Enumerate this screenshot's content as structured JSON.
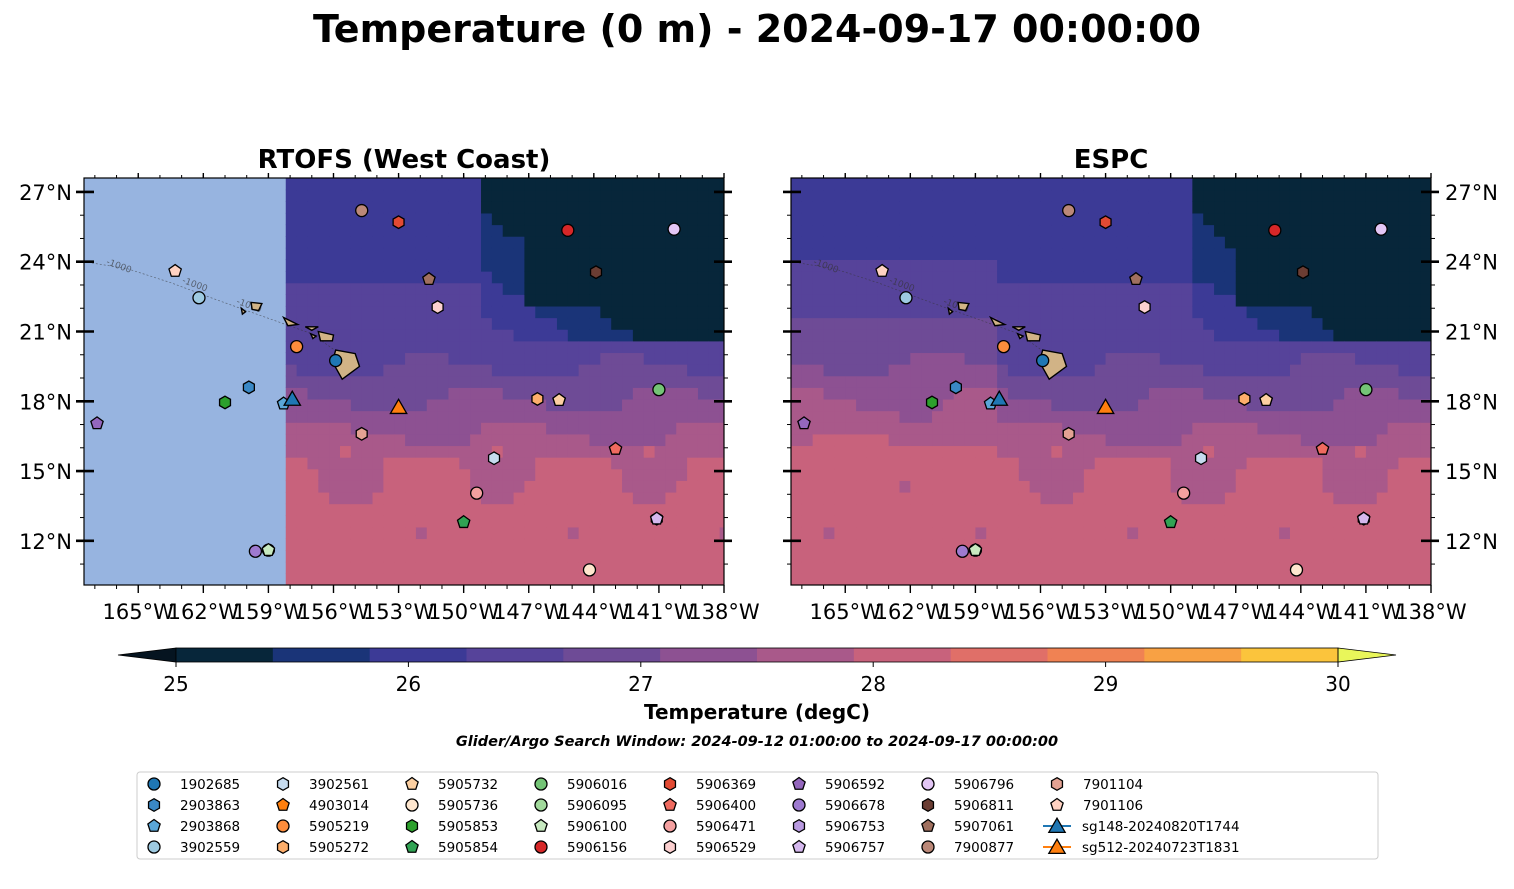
{
  "figure": {
    "title": "Temperature (0 m) - 2024-09-17 00:00:00",
    "search_window": "Glider/Argo Search Window: 2024-09-12 01:00:00 to 2024-09-17 00:00:00"
  },
  "colorbar": {
    "label": "Temperature (degC)",
    "min": 25,
    "max": 30,
    "step": 0.5,
    "ticks": [
      "25",
      "26",
      "27",
      "28",
      "29",
      "30"
    ],
    "colors": [
      "#07263a",
      "#1a3478",
      "#3c3a96",
      "#56439a",
      "#6e4b96",
      "#8d5192",
      "#a9598a",
      "#c8627c",
      "#e06f68",
      "#f08253",
      "#f8a144",
      "#fbc43c"
    ],
    "under_color": "#051420",
    "over_color": "#e9f65a"
  },
  "land_color": "#d1b386",
  "masked_region_color": "#97b4e0",
  "contour_label": "-1000",
  "axes": {
    "lon_range": [
      -167.5,
      -138
    ],
    "lat_range": [
      10.1,
      27.6
    ],
    "x_ticks": [
      "165°W",
      "162°W",
      "159°W",
      "156°W",
      "153°W",
      "150°W",
      "147°W",
      "144°W",
      "141°W",
      "138°W"
    ],
    "y_ticks": [
      "12°N",
      "15°N",
      "18°N",
      "21°N",
      "24°N",
      "27°N"
    ]
  },
  "chart_data": [
    {
      "type": "heatmap",
      "title": "RTOFS (West Coast)",
      "data_min_lon": -158.2,
      "field": "sea surface temperature, degC: ~28.0-29.2 south of 16°N, ~26.5-27.5 near Hawaii, 25.0-25.5 in the northeast (north of 21°N, east of 147°W)"
    },
    {
      "type": "heatmap",
      "title": "ESPC",
      "data_min_lon": -167.5,
      "field": "sea surface temperature, degC: ~28.0-28.5 south and west of Hawaii, ~26.5-27.5 north-central, 25.0-25.5 in the northeast"
    }
  ],
  "platforms": [
    {
      "id": "1902685",
      "marker": "circle",
      "color": "#1f77b4",
      "lon": -155.9,
      "lat": 19.75
    },
    {
      "id": "2903863",
      "marker": "hexagon",
      "color": "#3a88c5",
      "lon": -159.9,
      "lat": 18.6
    },
    {
      "id": "2903868",
      "marker": "pentagon",
      "color": "#5aa6d8",
      "lon": -158.3,
      "lat": 17.9
    },
    {
      "id": "3902559",
      "marker": "circle",
      "color": "#9ecae1",
      "lon": -162.2,
      "lat": 22.45
    },
    {
      "id": "3902561",
      "marker": "hexagon",
      "color": "#c6dbef",
      "lon": -148.6,
      "lat": 15.55
    },
    {
      "id": "4903014",
      "marker": "pentagon",
      "color": "#ff7f0e",
      "lon": -145.6,
      "lat": 18.05
    },
    {
      "id": "5905219",
      "marker": "circle",
      "color": "#fd8d3c",
      "lon": -157.7,
      "lat": 20.35
    },
    {
      "id": "5905272",
      "marker": "hexagon",
      "color": "#fdae6b",
      "lon": -146.6,
      "lat": 18.1
    },
    {
      "id": "5905732",
      "marker": "pentagon",
      "color": "#fdd0a2",
      "lon": -145.6,
      "lat": 18.05
    },
    {
      "id": "5905736",
      "marker": "circle",
      "color": "#fee6ce",
      "lon": -144.2,
      "lat": 10.75
    },
    {
      "id": "5905853",
      "marker": "hexagon",
      "color": "#2ca02c",
      "lon": -161.0,
      "lat": 17.95
    },
    {
      "id": "5905854",
      "marker": "pentagon",
      "color": "#31a354",
      "lon": -150.0,
      "lat": 12.8
    },
    {
      "id": "5906016",
      "marker": "circle",
      "color": "#74c476",
      "lon": -141.0,
      "lat": 18.5
    },
    {
      "id": "5906095",
      "marker": "circle",
      "color": "#a1d99b",
      "lon": -159.0,
      "lat": 11.6
    },
    {
      "id": "5906100",
      "marker": "pentagon",
      "color": "#c7e9c0",
      "lon": -159.0,
      "lat": 11.6
    },
    {
      "id": "5906156",
      "marker": "circle",
      "color": "#d62728",
      "lon": -145.2,
      "lat": 25.35
    },
    {
      "id": "5906369",
      "marker": "hexagon",
      "color": "#e34a33",
      "lon": -153.0,
      "lat": 25.7
    },
    {
      "id": "5906400",
      "marker": "pentagon",
      "color": "#ef6a5f",
      "lon": -143.0,
      "lat": 15.95
    },
    {
      "id": "5906471",
      "marker": "circle",
      "color": "#f4a0a0",
      "lon": -149.4,
      "lat": 14.05
    },
    {
      "id": "5906529",
      "marker": "hexagon",
      "color": "#fcd0d0",
      "lon": -151.2,
      "lat": 22.05
    },
    {
      "id": "5906592",
      "marker": "pentagon",
      "color": "#9467bd",
      "lon": -166.9,
      "lat": 17.05
    },
    {
      "id": "5906678",
      "marker": "circle",
      "color": "#9e7ad0",
      "lon": -159.6,
      "lat": 11.55
    },
    {
      "id": "5906753",
      "marker": "hexagon",
      "color": "#b99ae0",
      "lon": -141.1,
      "lat": 12.95
    },
    {
      "id": "5906757",
      "marker": "pentagon",
      "color": "#d5b8ee",
      "lon": -141.1,
      "lat": 12.95
    },
    {
      "id": "5906796",
      "marker": "circle",
      "color": "#e3c6f5",
      "lon": -140.3,
      "lat": 25.4
    },
    {
      "id": "5906811",
      "marker": "hexagon",
      "color": "#6b3d33",
      "lon": -143.9,
      "lat": 23.55
    },
    {
      "id": "5907061",
      "marker": "pentagon",
      "color": "#a0705f",
      "lon": -151.6,
      "lat": 23.25
    },
    {
      "id": "7900877",
      "marker": "circle",
      "color": "#bb8878",
      "lon": -154.7,
      "lat": 26.2
    },
    {
      "id": "7901104",
      "marker": "hexagon",
      "color": "#e3a293",
      "lon": -154.7,
      "lat": 16.6
    },
    {
      "id": "7901106",
      "marker": "pentagon",
      "color": "#ffd2c2",
      "lon": -163.3,
      "lat": 23.6
    },
    {
      "id": "sg148-20240820T1744",
      "marker": "triangle",
      "color": "#1f77b4",
      "lon": -157.9,
      "lat": 18.1
    },
    {
      "id": "sg512-20240723T1831",
      "marker": "triangle",
      "color": "#ff7f0e",
      "lon": -153.0,
      "lat": 17.75
    }
  ]
}
